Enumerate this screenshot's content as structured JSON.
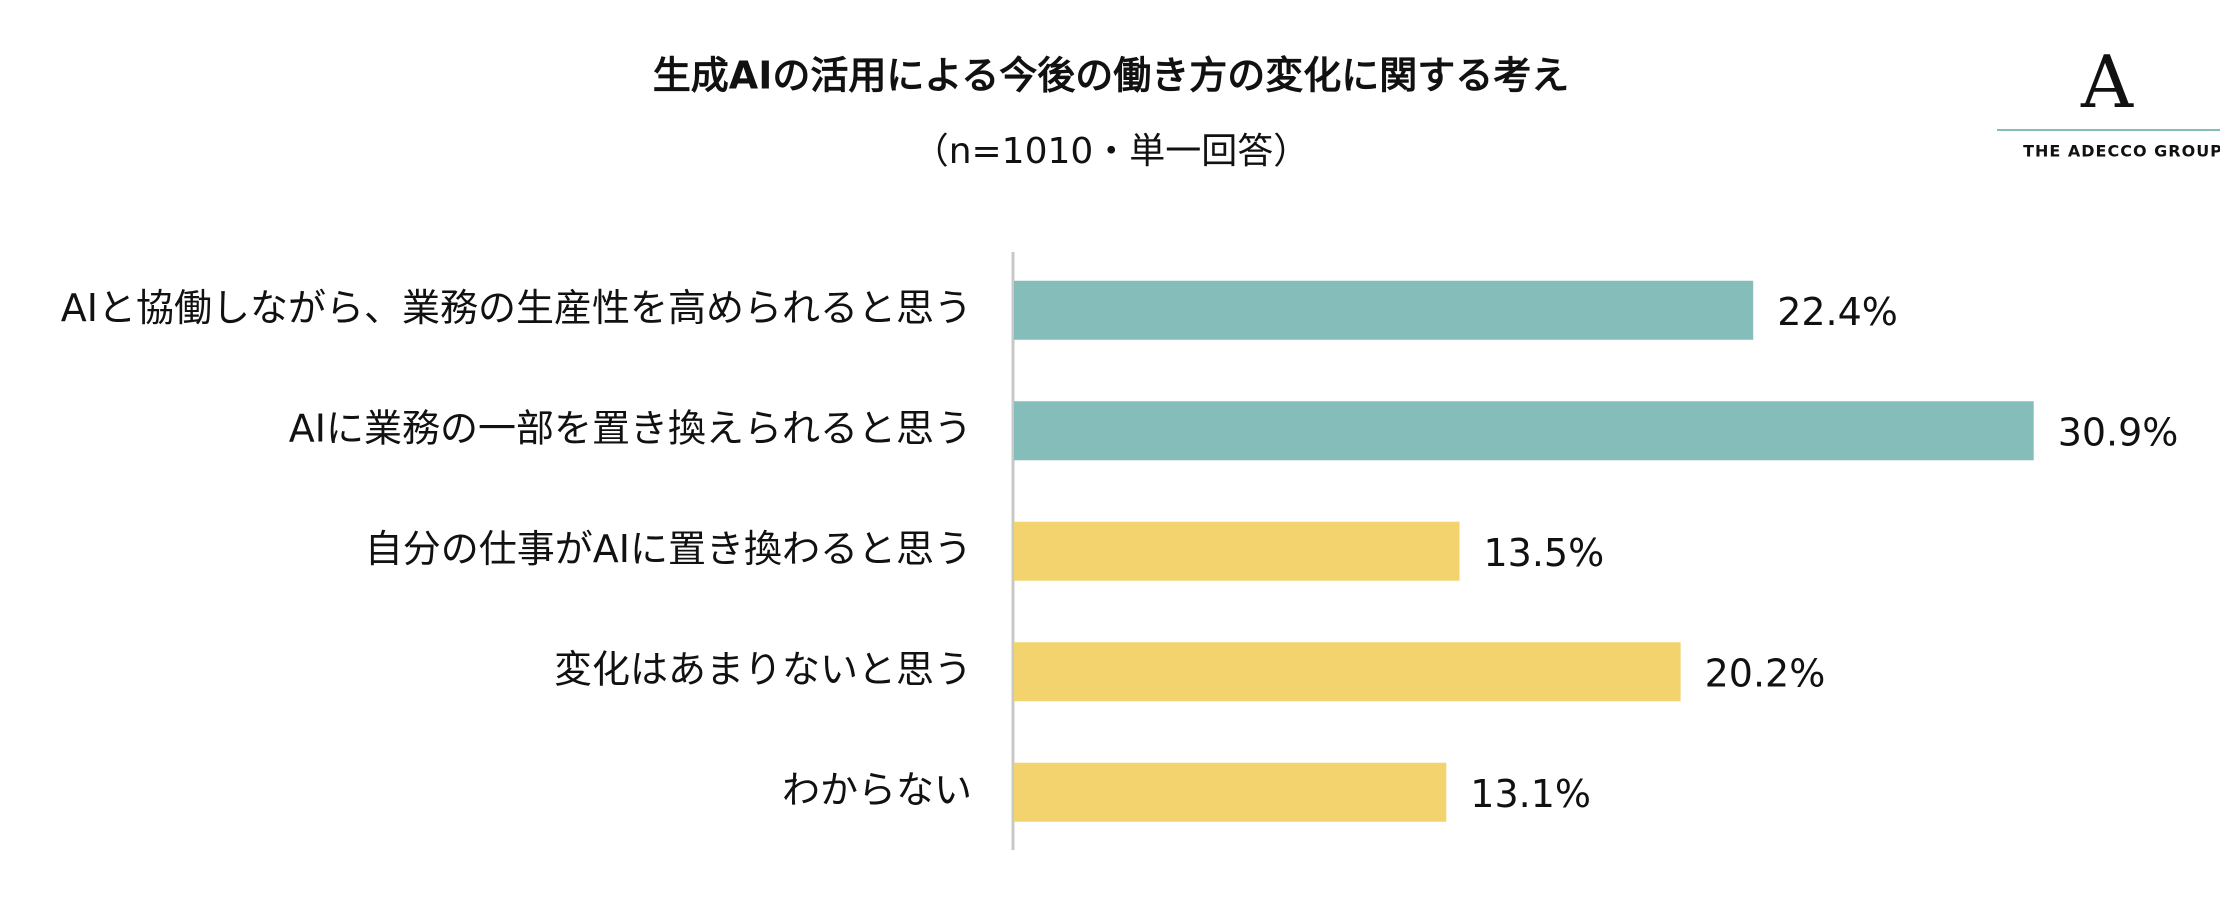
{
  "chart_data": {
    "type": "bar",
    "orientation": "horizontal",
    "title": "生成AIの活用による今後の働き方の変化に関する考え",
    "subtitle": "（n=1010・単一回答）",
    "categories": [
      "AIと協働しながら、業務の生産性を高められると思う",
      "AIに業務の一部を置き換えられると思う",
      "自分の仕事がAIに置き換わると思う",
      "変化はあまりないと思う",
      "わからない"
    ],
    "values": [
      22.4,
      30.9,
      13.5,
      20.2,
      13.1
    ],
    "value_labels": [
      "22.4%",
      "30.9%",
      "13.5%",
      "20.2%",
      "13.1%"
    ],
    "colors": [
      "#84bdb9",
      "#84bdb9",
      "#f3d36e",
      "#f3d36e",
      "#f3d36e"
    ]
  },
  "logo": {
    "mark": "A",
    "text": "THE ADECCO GROUP",
    "line_color": "#84bdb9"
  }
}
